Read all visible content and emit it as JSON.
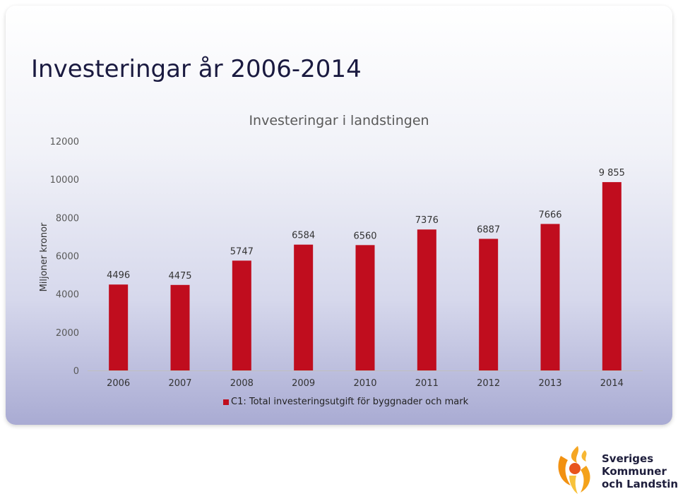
{
  "slide_title": "Investeringar år 2006-2014",
  "colors": {
    "bar": "#c00d1e",
    "text": "#333333"
  },
  "chart_data": {
    "type": "bar",
    "title": "Investeringar i landstingen",
    "ylabel": "Miljoner kronor",
    "xlabel": "",
    "ylim": [
      0,
      12000
    ],
    "yticks": [
      0,
      2000,
      4000,
      6000,
      8000,
      10000,
      12000
    ],
    "categories": [
      "2006",
      "2007",
      "2008",
      "2009",
      "2010",
      "2011",
      "2012",
      "2013",
      "2014"
    ],
    "series": [
      {
        "name": "C1: Total investeringsutgift för byggnader och mark",
        "values": [
          4496,
          4475,
          5747,
          6584,
          6560,
          7376,
          6887,
          7666,
          9855
        ],
        "labels": [
          "4496",
          "4475",
          "5747",
          "6584",
          "6560",
          "7376",
          "6887",
          "7666",
          "9 855"
        ]
      }
    ],
    "grid": false,
    "legend_position": "bottom"
  },
  "logo": {
    "icon": "skl-flame-figure-icon",
    "lines": [
      "Sveriges",
      "Kommuner",
      "och Landsting"
    ]
  }
}
